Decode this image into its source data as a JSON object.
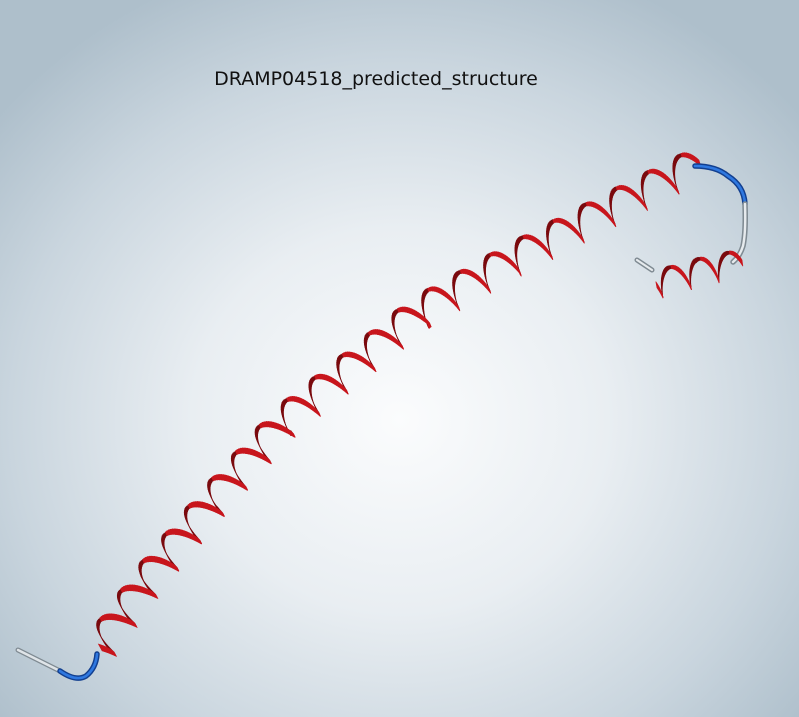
{
  "title": "DRAMP04518_predicted_structure",
  "colors": {
    "helix": "#c8161d",
    "helix_dark": "#7a0a0e",
    "coil_blue": "#1f5fc8",
    "coil_grey": "#b9c0c6"
  },
  "icons": {
    "main_helix": "alpha-helix-ribbon-icon",
    "short_helix": "alpha-helix-ribbon-icon",
    "coil": "random-coil-tube-icon"
  }
}
